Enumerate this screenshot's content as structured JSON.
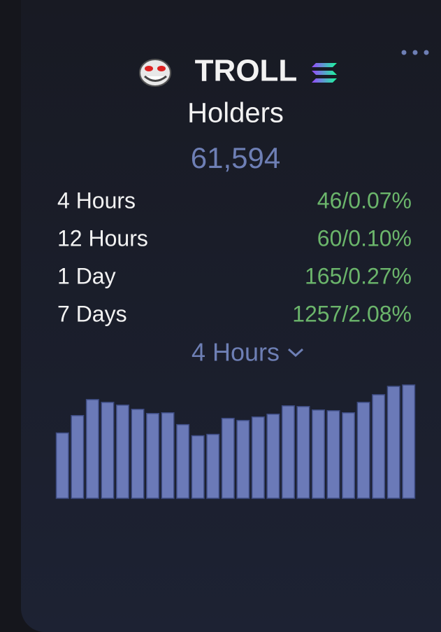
{
  "header": {
    "title": "TROLL"
  },
  "label": "Holders",
  "total": "61,594",
  "stats": [
    {
      "period": "4 Hours",
      "value": "46/0.07%"
    },
    {
      "period": "12 Hours",
      "value": "60/0.10%"
    },
    {
      "period": "1 Day",
      "value": "165/0.27%"
    },
    {
      "period": "7 Days",
      "value": "1257/2.08%"
    }
  ],
  "dropdown": "4 Hours",
  "chart_data": {
    "type": "bar",
    "color": "#6b7ab8",
    "values": [
      94,
      119,
      142,
      138,
      134,
      128,
      122,
      123,
      106,
      90,
      92,
      115,
      112,
      117,
      121,
      133,
      132,
      127,
      126,
      123,
      138,
      149,
      161,
      163
    ],
    "ylim": [
      0,
      165
    ]
  }
}
